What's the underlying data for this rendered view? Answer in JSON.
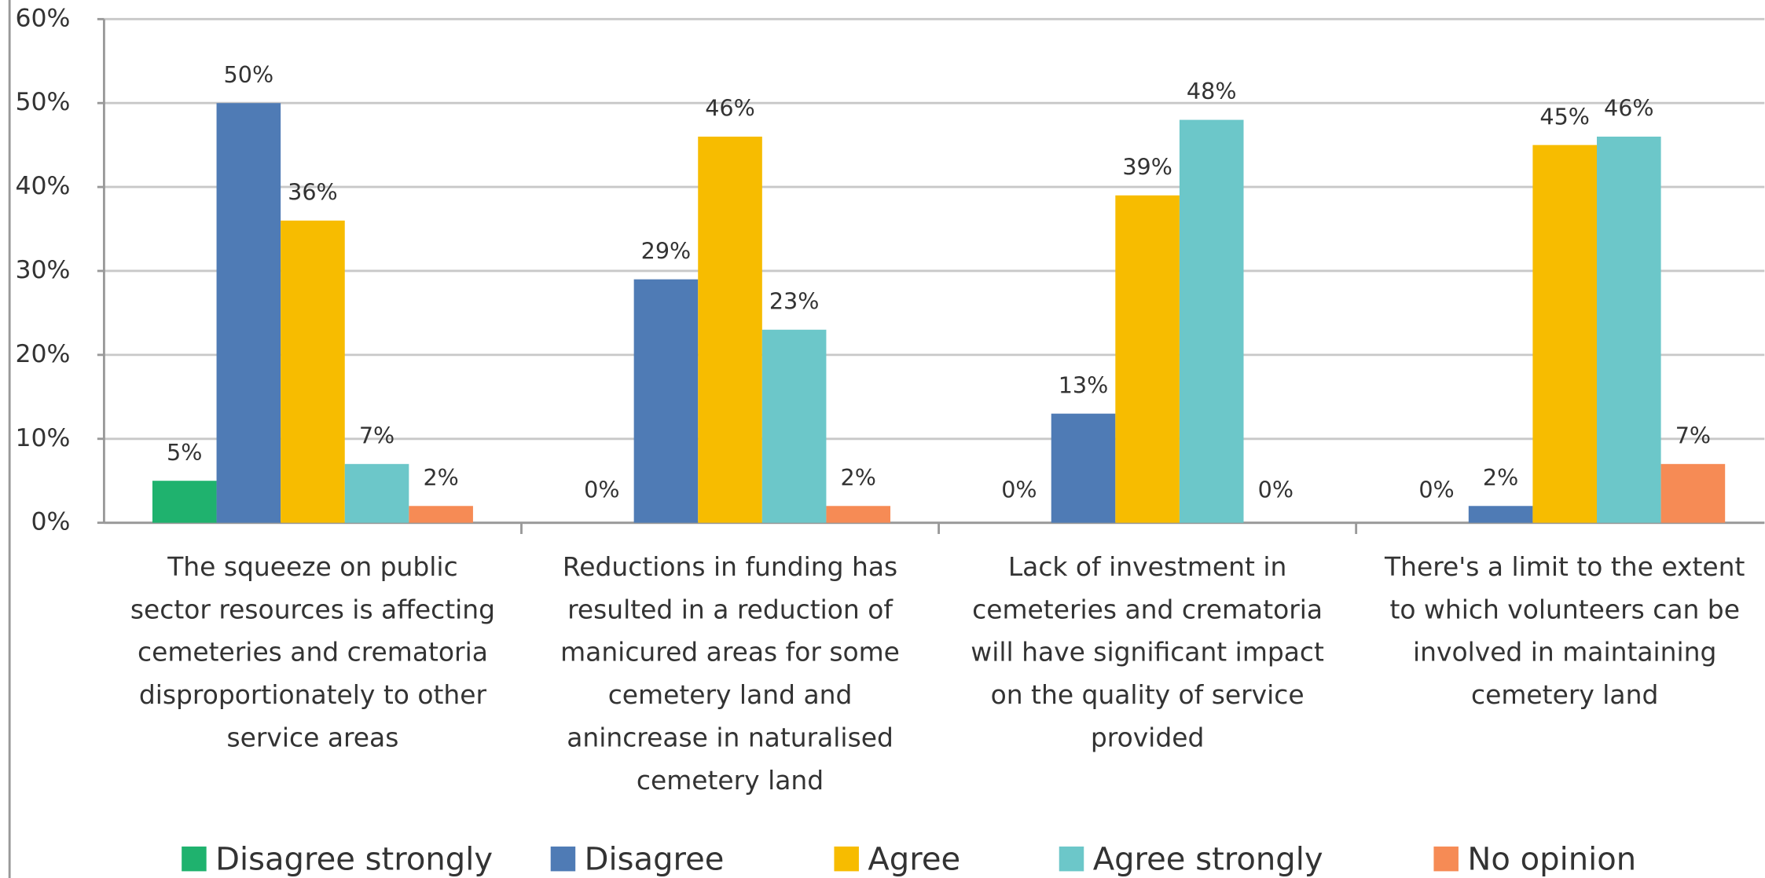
{
  "chart_data": {
    "type": "bar",
    "categories": [
      "The squeeze on public\nsector resources is affecting\ncemeteries and crematoria\ndisproportionately to other\nservice areas",
      "Reductions in funding has\nresulted in a reduction of\nmanicured areas for some\ncemetery land and\nanincrease in naturalised\ncemetery land",
      "Lack of investment in\ncemeteries and crematoria\nwill have significant impact\non the quality of service\nprovided",
      "There's a limit to the extent\nto which volunteers can be\ninvolved in maintaining\ncemetery land"
    ],
    "series": [
      {
        "name": "Disagree strongly",
        "color": "#1fb26e",
        "values": [
          5,
          0,
          0,
          0
        ],
        "value_labels": [
          "5%",
          "0%",
          "0%",
          "0%"
        ]
      },
      {
        "name": "Disagree",
        "color": "#4f7bb5",
        "values": [
          50,
          29,
          13,
          2
        ],
        "value_labels": [
          "50%",
          "29%",
          "13%",
          "2%"
        ]
      },
      {
        "name": "Agree",
        "color": "#f7bc00",
        "values": [
          36,
          46,
          39,
          45
        ],
        "value_labels": [
          "36%",
          "46%",
          "39%",
          "45%"
        ]
      },
      {
        "name": "Agree strongly",
        "color": "#6cc7c9",
        "values": [
          7,
          23,
          48,
          46
        ],
        "value_labels": [
          "7%",
          "23%",
          "48%",
          "46%"
        ]
      },
      {
        "name": "No opinion",
        "color": "#f68b55",
        "values": [
          2,
          2,
          0,
          7
        ],
        "value_labels": [
          "2%",
          "2%",
          "0%",
          "7%"
        ]
      }
    ],
    "ylim": [
      0,
      60
    ],
    "yticks": [
      {
        "value": 0,
        "label": "0%"
      },
      {
        "value": 10,
        "label": "10%"
      },
      {
        "value": 20,
        "label": "20%"
      },
      {
        "value": 30,
        "label": "30%"
      },
      {
        "value": 40,
        "label": "40%"
      },
      {
        "value": 50,
        "label": "50%"
      },
      {
        "value": 60,
        "label": "60%"
      }
    ],
    "grid": true,
    "legend": "bottom"
  }
}
